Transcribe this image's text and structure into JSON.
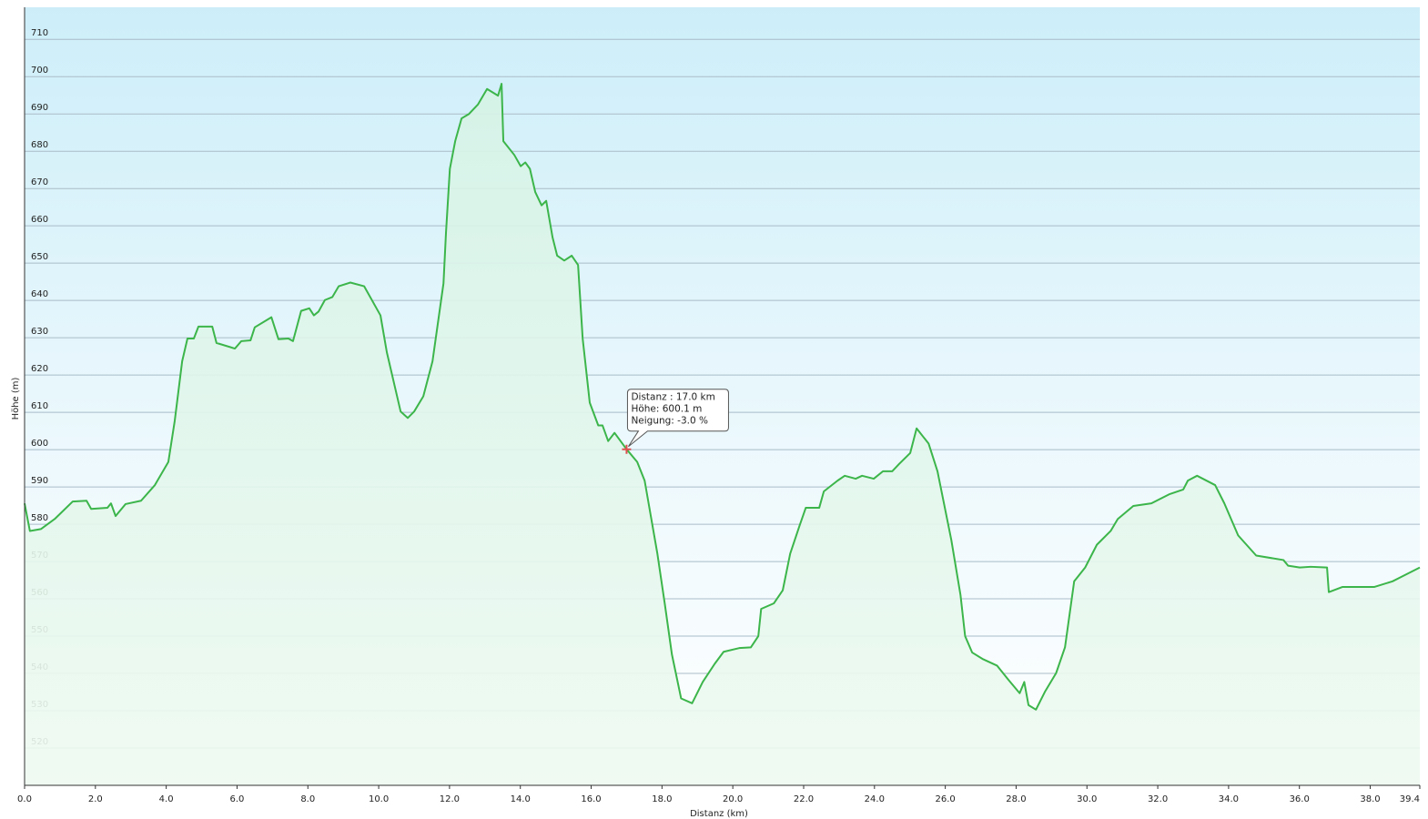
{
  "chart_data": {
    "type": "area-line",
    "x_label": "Distanz  (km)",
    "y_label": "Höhe (m)",
    "xlim": [
      0,
      39.4
    ],
    "ylim": [
      510,
      718.6
    ],
    "xticks": [
      {
        "value": 0,
        "label": "0.0"
      },
      {
        "value": 2,
        "label": "2.0"
      },
      {
        "value": 4,
        "label": "4.0"
      },
      {
        "value": 6,
        "label": "6.0"
      },
      {
        "value": 8,
        "label": "8.0"
      },
      {
        "value": 10,
        "label": "10.0"
      },
      {
        "value": 12,
        "label": "12.0"
      },
      {
        "value": 14,
        "label": "14.0"
      },
      {
        "value": 16,
        "label": "16.0"
      },
      {
        "value": 18,
        "label": "18.0"
      },
      {
        "value": 20,
        "label": "20.0"
      },
      {
        "value": 22,
        "label": "22.0"
      },
      {
        "value": 24,
        "label": "24.0"
      },
      {
        "value": 26,
        "label": "26.0"
      },
      {
        "value": 28,
        "label": "28.0"
      },
      {
        "value": 30,
        "label": "30.0"
      },
      {
        "value": 32,
        "label": "32.0"
      },
      {
        "value": 34,
        "label": "34.0"
      },
      {
        "value": 36,
        "label": "36.0"
      },
      {
        "value": 38,
        "label": "38.0"
      },
      {
        "value": 39.4,
        "label": "39.4"
      }
    ],
    "yticks": [
      520,
      530,
      540,
      550,
      560,
      570,
      580,
      590,
      600,
      610,
      620,
      630,
      640,
      650,
      660,
      670,
      680,
      690,
      700,
      710
    ],
    "grid": true,
    "series": [
      {
        "color": "#3cb54a",
        "x": [
          0,
          0.15,
          0.46,
          0.85,
          1.36,
          1.75,
          1.88,
          2.34,
          2.44,
          2.57,
          2.85,
          3.29,
          3.68,
          4.06,
          4.24,
          4.45,
          4.6,
          4.78,
          4.91,
          5.3,
          5.42,
          5.94,
          6.12,
          6.38,
          6.5,
          6.97,
          7.17,
          7.45,
          7.58,
          7.81,
          8.04,
          8.17,
          8.3,
          8.48,
          8.69,
          8.87,
          9.2,
          9.59,
          10.05,
          10.23,
          10.62,
          10.82,
          11.0,
          11.26,
          11.52,
          11.83,
          11.9,
          12.01,
          12.16,
          12.34,
          12.55,
          12.8,
          13.06,
          13.37,
          13.47,
          13.52,
          13.83,
          14.01,
          14.14,
          14.27,
          14.42,
          14.6,
          14.73,
          14.91,
          15.04,
          15.24,
          15.45,
          15.63,
          15.76,
          15.96,
          16.2,
          16.32,
          16.48,
          16.66,
          17.0,
          17.3,
          17.51,
          17.87,
          18.08,
          18.28,
          18.54,
          18.85,
          19.15,
          19.49,
          19.74,
          20.18,
          20.51,
          20.72,
          20.8,
          21.16,
          21.41,
          21.62,
          21.88,
          22.06,
          22.44,
          22.57,
          22.96,
          23.16,
          23.47,
          23.65,
          23.98,
          24.24,
          24.5,
          24.7,
          25.01,
          25.19,
          25.53,
          25.78,
          26.17,
          26.43,
          26.56,
          26.76,
          27.07,
          27.46,
          27.79,
          28.1,
          28.23,
          28.35,
          28.56,
          28.82,
          29.13,
          29.38,
          29.64,
          29.95,
          30.28,
          30.67,
          30.87,
          31.31,
          31.82,
          32.34,
          32.72,
          32.85,
          33.11,
          33.62,
          33.88,
          34.27,
          34.78,
          35.55,
          35.68,
          36.01,
          36.32,
          36.78,
          36.83,
          37.22,
          38.12,
          38.63,
          39.4
        ],
        "values": [
          585.6,
          578.2,
          578.7,
          581.4,
          586.1,
          586.3,
          584.1,
          584.4,
          585.6,
          582.2,
          585.4,
          586.3,
          590.5,
          596.7,
          607.7,
          623.7,
          629.8,
          629.8,
          633.0,
          633.0,
          628.6,
          627.1,
          629.1,
          629.3,
          632.8,
          635.5,
          629.6,
          629.8,
          629.1,
          637.2,
          637.9,
          636.0,
          637.0,
          640.1,
          640.9,
          643.8,
          644.8,
          643.8,
          636.0,
          626.1,
          610.2,
          608.5,
          610.2,
          614.3,
          623.7,
          644.6,
          658.1,
          675.3,
          682.7,
          688.8,
          690.0,
          692.5,
          696.7,
          694.9,
          698.1,
          682.7,
          679.0,
          676.0,
          677.0,
          675.3,
          669.1,
          665.5,
          666.7,
          656.9,
          652.0,
          650.7,
          652.0,
          649.5,
          629.8,
          612.6,
          606.5,
          606.5,
          602.3,
          604.5,
          600.1,
          596.7,
          591.7,
          572.1,
          558.6,
          545.1,
          533.3,
          532.0,
          537.7,
          542.6,
          545.8,
          546.8,
          547.0,
          550.0,
          557.3,
          558.8,
          562.3,
          572.1,
          579.5,
          584.4,
          584.4,
          588.8,
          591.7,
          593.0,
          592.2,
          593.0,
          592.2,
          594.2,
          594.2,
          596.2,
          599.1,
          605.7,
          601.6,
          594.2,
          575.8,
          561.0,
          550.0,
          545.6,
          543.8,
          542.1,
          538.2,
          534.7,
          537.7,
          531.5,
          530.3,
          535.2,
          540.1,
          547.0,
          564.7,
          568.4,
          574.5,
          578.2,
          581.4,
          584.9,
          585.6,
          588.1,
          589.3,
          591.7,
          593.0,
          590.5,
          585.6,
          577.0,
          571.6,
          570.4,
          568.9,
          568.4,
          568.6,
          568.4,
          561.8,
          563.2,
          563.2,
          564.7,
          568.4
        ]
      }
    ],
    "marker": {
      "x": 17.0,
      "y": 600.1,
      "color": "#e05050"
    },
    "tooltip": [
      "Distanz : 17.0 km",
      "Höhe: 600.1 m",
      "Neigung: -3.0 %"
    ]
  }
}
